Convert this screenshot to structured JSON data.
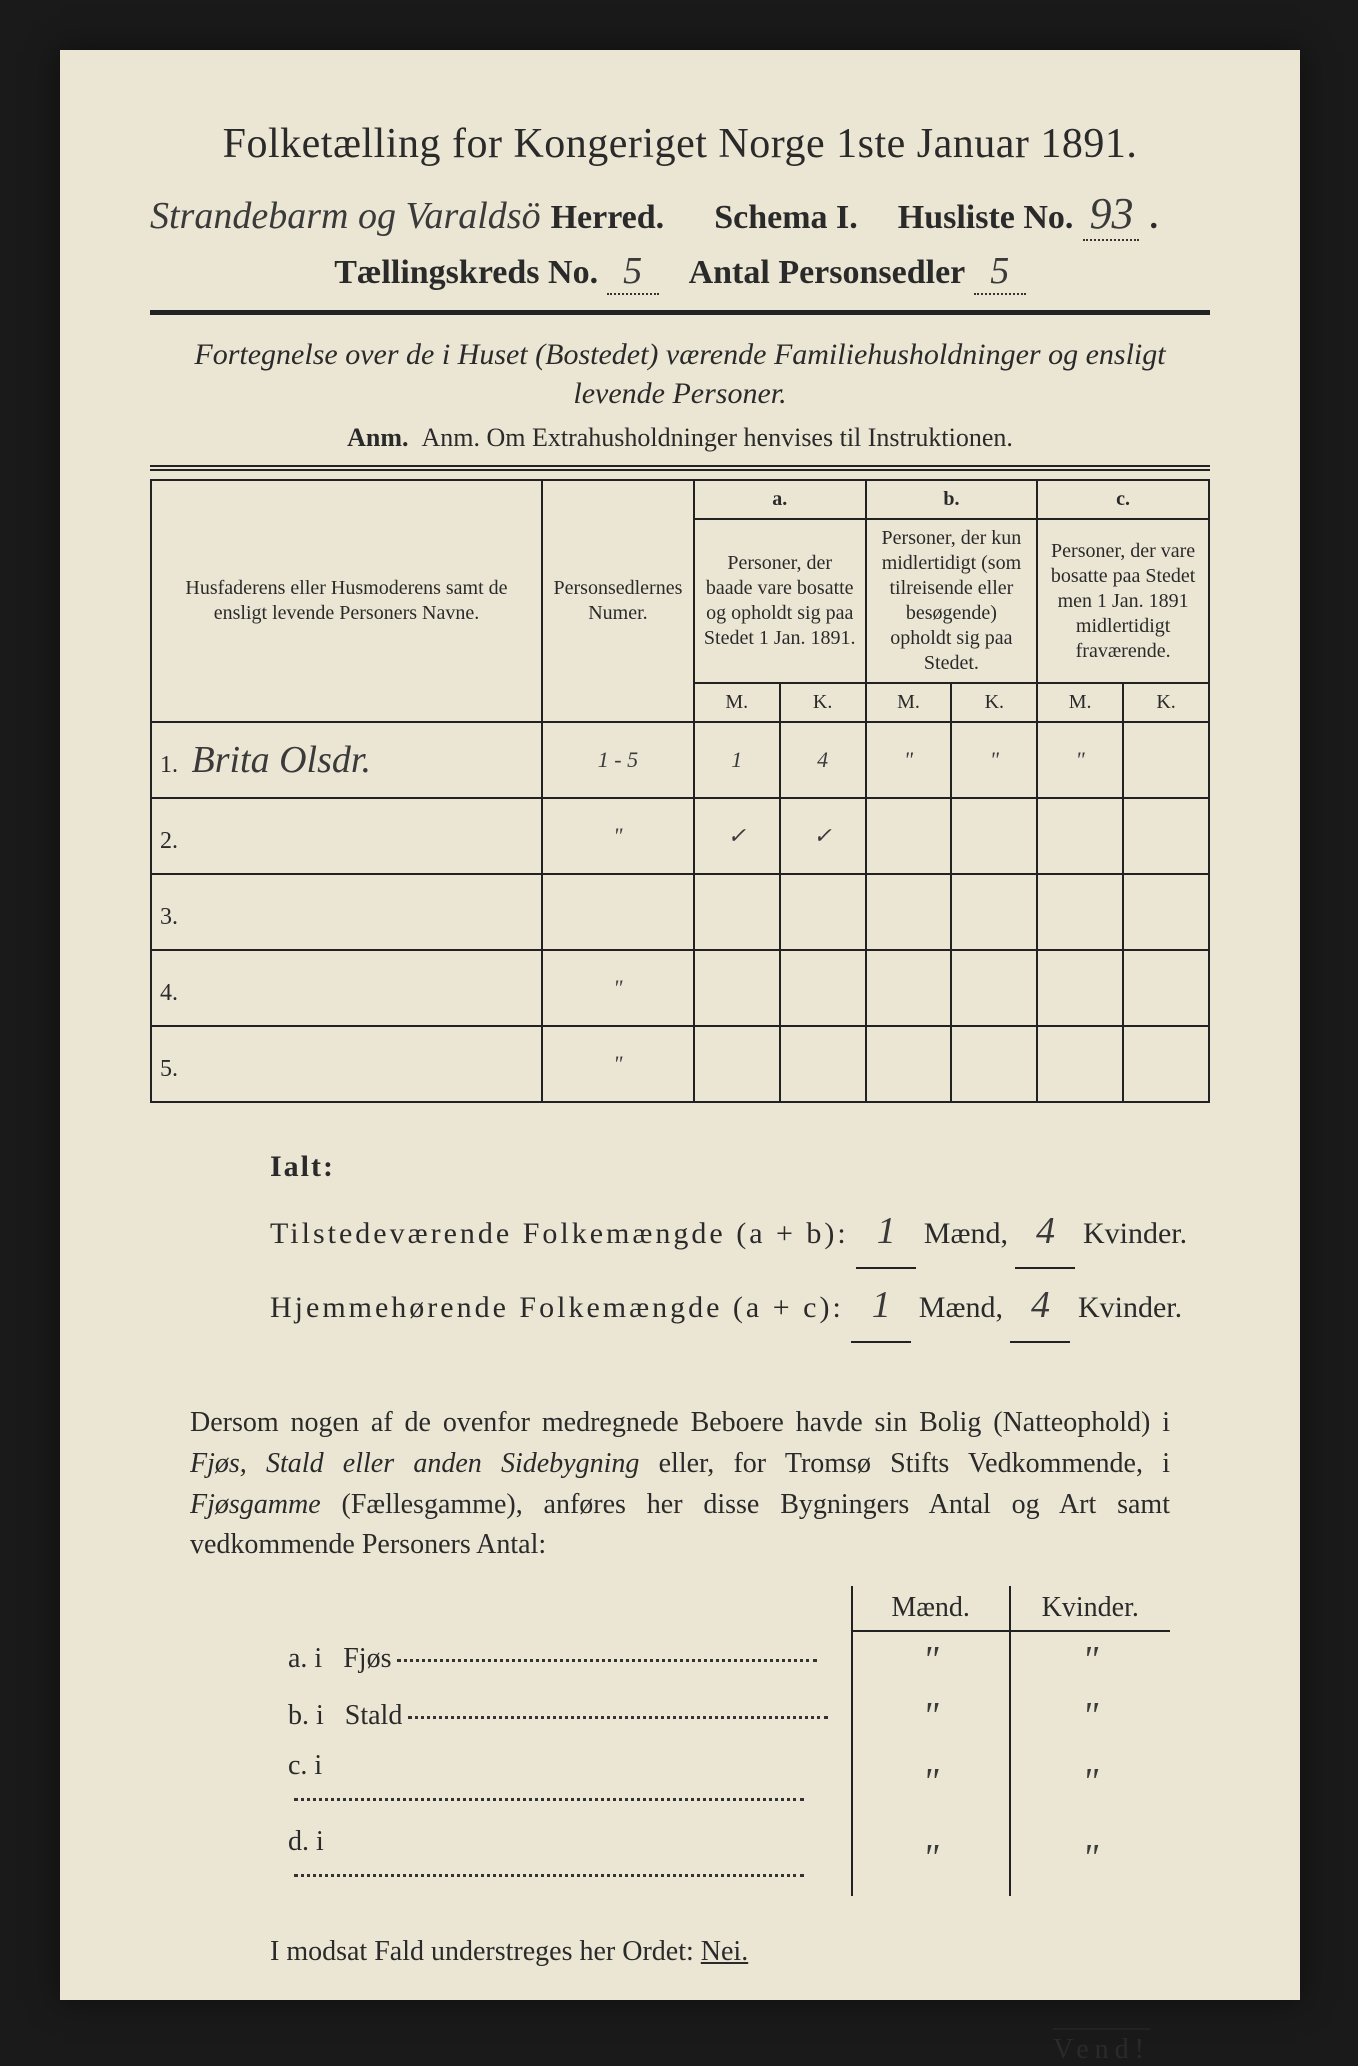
{
  "title": "Folketælling for Kongeriget Norge 1ste Januar 1891.",
  "header": {
    "herred_handwritten": "Strandebarm og Varaldsö",
    "herred_label": "Herred.",
    "schema_label": "Schema I.",
    "husliste_label": "Husliste No.",
    "husliste_no": "93",
    "kreds_label": "Tællingskreds No.",
    "kreds_no": "5",
    "antal_label": "Antal Personsedler",
    "antal_val": "5"
  },
  "subtitle": "Fortegnelse over de i Huset (Bostedet) værende Familiehusholdninger og ensligt levende Personer.",
  "anm": "Anm.  Om Extrahusholdninger henvises til Instruktionen.",
  "table": {
    "col_name": "Husfaderens eller Husmoderens samt de ensligt levende Personers Navne.",
    "col_num": "Personsedlernes Numer.",
    "col_a_top": "a.",
    "col_a": "Personer, der baade vare bosatte og opholdt sig paa Stedet 1 Jan. 1891.",
    "col_b_top": "b.",
    "col_b": "Personer, der kun midlertidigt (som tilreisende eller besøgende) opholdt sig paa Stedet.",
    "col_c_top": "c.",
    "col_c": "Personer, der vare bosatte paa Stedet men 1 Jan. 1891 midlertidigt fraværende.",
    "m": "M.",
    "k": "K.",
    "rows": [
      {
        "n": "1.",
        "name": "Brita Olsdr.",
        "num": "1 - 5",
        "am": "1",
        "ak": "4",
        "bm": "\"",
        "bk": "\"",
        "cm": "\"",
        "ck": ""
      },
      {
        "n": "2.",
        "name": "",
        "num": "\"",
        "am": "✓",
        "ak": "✓",
        "bm": "",
        "bk": "",
        "cm": "",
        "ck": ""
      },
      {
        "n": "3.",
        "name": "",
        "num": "",
        "am": "",
        "ak": "",
        "bm": "",
        "bk": "",
        "cm": "",
        "ck": ""
      },
      {
        "n": "4.",
        "name": "",
        "num": "\"",
        "am": "",
        "ak": "",
        "bm": "",
        "bk": "",
        "cm": "",
        "ck": ""
      },
      {
        "n": "5.",
        "name": "",
        "num": "\"",
        "am": "",
        "ak": "",
        "bm": "",
        "bk": "",
        "cm": "",
        "ck": ""
      }
    ]
  },
  "ialt": {
    "label": "Ialt:",
    "line1_a": "Tilstedeværende Folkemængde (a + b):",
    "line2_a": "Hjemmehørende Folkemængde (a + c):",
    "maend": "Mænd,",
    "kvinder": "Kvinder.",
    "v1m": "1",
    "v1k": "4",
    "v2m": "1",
    "v2k": "4"
  },
  "para": "Dersom nogen af de ovenfor medregnede Beboere havde sin Bolig (Natteophold) i Fjøs, Stald eller anden Sidebygning eller, for Tromsø Stifts Vedkommende, i Fjøsgamme (Fællesgamme), anføres her disse Bygningers Antal og Art samt vedkommende Personers Antal:",
  "lodging": {
    "h_m": "Mænd.",
    "h_k": "Kvinder.",
    "rows": [
      {
        "l": "a.  i",
        "t": "Fjøs",
        "m": "\"",
        "k": "\""
      },
      {
        "l": "b.  i",
        "t": "Stald",
        "m": "\"",
        "k": "\""
      },
      {
        "l": "c.  i",
        "t": "",
        "m": "\"",
        "k": "\""
      },
      {
        "l": "d.  i",
        "t": "",
        "m": "\"",
        "k": "\""
      }
    ]
  },
  "footer": {
    "text_a": "I modsat Fald understreges her Ordet:",
    "nei": "Nei.",
    "vend": "Vend!"
  },
  "colors": {
    "paper": "#ebe6d4",
    "ink": "#2a2a2a",
    "background": "#1a1a1a"
  }
}
